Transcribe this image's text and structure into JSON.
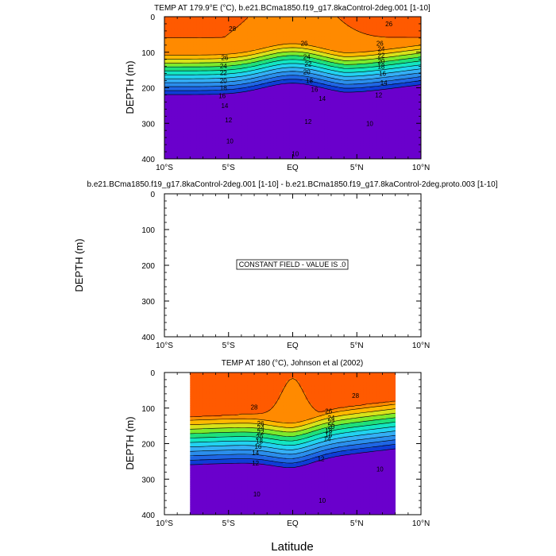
{
  "chart_data": [
    {
      "type": "heatmap",
      "subtype": "filled-contour",
      "title": "TEMP AT 179.9°E (°C), b.e21.BCma1850.f19_g17.8kaControl-2deg.001 [1-10]",
      "xlabel": "",
      "ylabel": "DEPTH (m)",
      "x_ticks": [
        "10°S",
        "5°S",
        "EQ",
        "5°N",
        "10°N"
      ],
      "y_ticks": [
        "0",
        "100",
        "200",
        "300",
        "400"
      ],
      "x_range_deg": [
        -10,
        10
      ],
      "y_range_m": [
        0,
        400
      ],
      "y_inverted": true,
      "contour_levels_degC": [
        6,
        8,
        10,
        12,
        14,
        16,
        18,
        20,
        22,
        24,
        26,
        28,
        30
      ],
      "contour_labels": [
        {
          "text": "28",
          "lat": -4.7,
          "depth": 33
        },
        {
          "text": "26",
          "lat": 7.5,
          "depth": 20
        },
        {
          "text": "26",
          "lat": 0.9,
          "depth": 75
        },
        {
          "text": "26",
          "lat": 6.8,
          "depth": 75
        },
        {
          "text": "26",
          "lat": -5.3,
          "depth": 115
        },
        {
          "text": "24",
          "lat": 1.1,
          "depth": 113
        },
        {
          "text": "24",
          "lat": 6.9,
          "depth": 90
        },
        {
          "text": "24",
          "lat": -5.4,
          "depth": 138
        },
        {
          "text": "22",
          "lat": -5.4,
          "depth": 158
        },
        {
          "text": "22",
          "lat": 1.2,
          "depth": 133
        },
        {
          "text": "22",
          "lat": 6.9,
          "depth": 108
        },
        {
          "text": "20",
          "lat": -5.4,
          "depth": 180
        },
        {
          "text": "20",
          "lat": 1.1,
          "depth": 155
        },
        {
          "text": "20",
          "lat": 6.9,
          "depth": 125
        },
        {
          "text": "18",
          "lat": -5.4,
          "depth": 200
        },
        {
          "text": "18",
          "lat": 1.3,
          "depth": 180
        },
        {
          "text": "18",
          "lat": 6.9,
          "depth": 140
        },
        {
          "text": "16",
          "lat": -5.5,
          "depth": 222
        },
        {
          "text": "16",
          "lat": 1.7,
          "depth": 205
        },
        {
          "text": "16",
          "lat": 7.0,
          "depth": 160
        },
        {
          "text": "14",
          "lat": -5.3,
          "depth": 250
        },
        {
          "text": "14",
          "lat": 2.3,
          "depth": 230
        },
        {
          "text": "14",
          "lat": 7.1,
          "depth": 185
        },
        {
          "text": "12",
          "lat": -5.0,
          "depth": 290
        },
        {
          "text": "12",
          "lat": 1.2,
          "depth": 295
        },
        {
          "text": "12",
          "lat": 6.7,
          "depth": 220
        },
        {
          "text": "10",
          "lat": -4.9,
          "depth": 350
        },
        {
          "text": "10",
          "lat": 0.2,
          "depth": 385
        },
        {
          "text": "10",
          "lat": 6.0,
          "depth": 300
        }
      ]
    },
    {
      "type": "heatmap",
      "subtype": "difference",
      "title": "b.e21.BCma1850.f19_g17.8kaControl-2deg.001 [1-10] - b.e21.BCma1850.f19_g17.8kaControl-2deg.proto.003 [1-10]",
      "xlabel": "",
      "ylabel": "DEPTH (m)",
      "x_ticks": [
        "10°S",
        "5°S",
        "EQ",
        "5°N",
        "10°N"
      ],
      "y_ticks": [
        "0",
        "100",
        "200",
        "300",
        "400"
      ],
      "x_range_deg": [
        -10,
        10
      ],
      "y_range_m": [
        0,
        400
      ],
      "y_inverted": true,
      "annotation": "CONSTANT FIELD - VALUE IS .0",
      "constant_value": 0
    },
    {
      "type": "heatmap",
      "subtype": "filled-contour",
      "title": "TEMP AT 180 (°C), Johnson et al (2002)",
      "xlabel": "Latitude",
      "ylabel": "DEPTH (m)",
      "x_ticks": [
        "10°S",
        "5°S",
        "EQ",
        "5°N",
        "10°N"
      ],
      "y_ticks": [
        "0",
        "100",
        "200",
        "300",
        "400"
      ],
      "x_range_deg": [
        -10,
        10
      ],
      "y_range_m": [
        0,
        400
      ],
      "data_lat_range_deg": [
        -8,
        8
      ],
      "y_inverted": true,
      "contour_levels_degC": [
        6,
        8,
        10,
        12,
        14,
        16,
        18,
        20,
        22,
        24,
        26,
        28,
        30
      ],
      "contour_labels": [
        {
          "text": "28",
          "lat": -3.0,
          "depth": 97
        },
        {
          "text": "28",
          "lat": 4.9,
          "depth": 65
        },
        {
          "text": "26",
          "lat": 2.8,
          "depth": 108
        },
        {
          "text": "26",
          "lat": -2.5,
          "depth": 143
        },
        {
          "text": "24",
          "lat": 3.0,
          "depth": 127
        },
        {
          "text": "24",
          "lat": -2.5,
          "depth": 155
        },
        {
          "text": "22",
          "lat": 3.0,
          "depth": 140
        },
        {
          "text": "22",
          "lat": -2.5,
          "depth": 168
        },
        {
          "text": "20",
          "lat": 3.0,
          "depth": 152
        },
        {
          "text": "20",
          "lat": -2.6,
          "depth": 181
        },
        {
          "text": "18",
          "lat": 2.8,
          "depth": 163
        },
        {
          "text": "18",
          "lat": -2.6,
          "depth": 193
        },
        {
          "text": "16",
          "lat": 2.8,
          "depth": 175
        },
        {
          "text": "16",
          "lat": -2.7,
          "depth": 208
        },
        {
          "text": "14",
          "lat": 2.7,
          "depth": 187
        },
        {
          "text": "14",
          "lat": -2.9,
          "depth": 226
        },
        {
          "text": "12",
          "lat": 2.2,
          "depth": 243
        },
        {
          "text": "12",
          "lat": -2.9,
          "depth": 255
        },
        {
          "text": "10",
          "lat": 6.8,
          "depth": 272
        },
        {
          "text": "10",
          "lat": -2.8,
          "depth": 342
        },
        {
          "text": "10",
          "lat": 2.3,
          "depth": 360
        }
      ]
    }
  ],
  "colors": {
    "colorscale": [
      "#6a00cc",
      "#0f3dd6",
      "#1f66e4",
      "#2b8eec",
      "#35aff5",
      "#22d2f0",
      "#13e6c2",
      "#1ee07a",
      "#7cea2c",
      "#d8e21a",
      "#ffb800",
      "#ff8a00",
      "#ff5a00",
      "#f02a10",
      "#d40d0d"
    ]
  }
}
